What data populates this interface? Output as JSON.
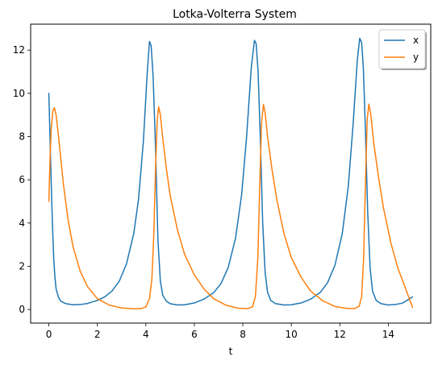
{
  "chart_data": {
    "type": "line",
    "title": "Lotka-Volterra System",
    "xlabel": "t",
    "ylabel": "",
    "xlim": [
      -0.75,
      15.75
    ],
    "ylim": [
      -0.63,
      13.2
    ],
    "xticks": [
      0,
      2,
      4,
      6,
      8,
      10,
      12,
      14
    ],
    "yticks": [
      0,
      2,
      4,
      6,
      8,
      10,
      12
    ],
    "grid": false,
    "legend": "top-right",
    "series": [
      {
        "name": "x",
        "color": "#1f77b4",
        "points": [
          [
            0.0,
            10.0
          ],
          [
            0.05,
            7.9
          ],
          [
            0.1,
            5.8
          ],
          [
            0.15,
            3.9
          ],
          [
            0.2,
            2.4
          ],
          [
            0.25,
            1.5
          ],
          [
            0.3,
            0.95
          ],
          [
            0.4,
            0.55
          ],
          [
            0.5,
            0.38
          ],
          [
            0.7,
            0.27
          ],
          [
            1.0,
            0.22
          ],
          [
            1.3,
            0.23
          ],
          [
            1.6,
            0.28
          ],
          [
            2.0,
            0.42
          ],
          [
            2.3,
            0.58
          ],
          [
            2.6,
            0.85
          ],
          [
            2.9,
            1.3
          ],
          [
            3.2,
            2.1
          ],
          [
            3.5,
            3.5
          ],
          [
            3.7,
            5.1
          ],
          [
            3.9,
            7.8
          ],
          [
            4.05,
            10.8
          ],
          [
            4.15,
            12.4
          ],
          [
            4.22,
            12.2
          ],
          [
            4.3,
            10.8
          ],
          [
            4.4,
            7.5
          ],
          [
            4.5,
            3.2
          ],
          [
            4.6,
            1.3
          ],
          [
            4.7,
            0.65
          ],
          [
            4.85,
            0.38
          ],
          [
            5.0,
            0.27
          ],
          [
            5.3,
            0.21
          ],
          [
            5.6,
            0.22
          ],
          [
            6.0,
            0.3
          ],
          [
            6.4,
            0.48
          ],
          [
            6.8,
            0.78
          ],
          [
            7.1,
            1.2
          ],
          [
            7.4,
            1.95
          ],
          [
            7.7,
            3.3
          ],
          [
            7.95,
            5.3
          ],
          [
            8.15,
            7.9
          ],
          [
            8.35,
            11.2
          ],
          [
            8.48,
            12.45
          ],
          [
            8.55,
            12.3
          ],
          [
            8.63,
            11.0
          ],
          [
            8.72,
            8.0
          ],
          [
            8.82,
            4.0
          ],
          [
            8.92,
            1.7
          ],
          [
            9.02,
            0.8
          ],
          [
            9.15,
            0.42
          ],
          [
            9.35,
            0.27
          ],
          [
            9.7,
            0.21
          ],
          [
            10.0,
            0.22
          ],
          [
            10.4,
            0.3
          ],
          [
            10.8,
            0.48
          ],
          [
            11.2,
            0.8
          ],
          [
            11.5,
            1.25
          ],
          [
            11.8,
            2.05
          ],
          [
            12.1,
            3.5
          ],
          [
            12.35,
            5.7
          ],
          [
            12.55,
            8.6
          ],
          [
            12.72,
            11.5
          ],
          [
            12.82,
            12.55
          ],
          [
            12.9,
            12.35
          ],
          [
            12.97,
            11.2
          ],
          [
            13.05,
            8.5
          ],
          [
            13.15,
            4.5
          ],
          [
            13.25,
            1.9
          ],
          [
            13.35,
            0.85
          ],
          [
            13.5,
            0.42
          ],
          [
            13.7,
            0.27
          ],
          [
            14.0,
            0.21
          ],
          [
            14.3,
            0.23
          ],
          [
            14.6,
            0.3
          ],
          [
            15.0,
            0.58
          ]
        ]
      },
      {
        "name": "y",
        "color": "#ff7f0e",
        "points": [
          [
            0.0,
            5.0
          ],
          [
            0.05,
            7.0
          ],
          [
            0.1,
            8.4
          ],
          [
            0.17,
            9.2
          ],
          [
            0.23,
            9.33
          ],
          [
            0.3,
            9.0
          ],
          [
            0.4,
            8.0
          ],
          [
            0.5,
            6.9
          ],
          [
            0.6,
            5.8
          ],
          [
            0.8,
            4.1
          ],
          [
            1.0,
            2.9
          ],
          [
            1.3,
            1.75
          ],
          [
            1.6,
            1.05
          ],
          [
            2.0,
            0.5
          ],
          [
            2.5,
            0.2
          ],
          [
            3.0,
            0.07
          ],
          [
            3.5,
            0.03
          ],
          [
            3.8,
            0.04
          ],
          [
            4.0,
            0.12
          ],
          [
            4.15,
            0.5
          ],
          [
            4.25,
            1.4
          ],
          [
            4.33,
            3.5
          ],
          [
            4.4,
            6.5
          ],
          [
            4.47,
            8.8
          ],
          [
            4.53,
            9.38
          ],
          [
            4.6,
            9.0
          ],
          [
            4.7,
            7.9
          ],
          [
            4.85,
            6.5
          ],
          [
            5.0,
            5.3
          ],
          [
            5.3,
            3.7
          ],
          [
            5.6,
            2.55
          ],
          [
            6.0,
            1.6
          ],
          [
            6.4,
            0.95
          ],
          [
            6.8,
            0.5
          ],
          [
            7.3,
            0.2
          ],
          [
            7.8,
            0.06
          ],
          [
            8.2,
            0.04
          ],
          [
            8.4,
            0.12
          ],
          [
            8.52,
            0.6
          ],
          [
            8.62,
            2.4
          ],
          [
            8.7,
            5.8
          ],
          [
            8.77,
            8.6
          ],
          [
            8.85,
            9.48
          ],
          [
            8.92,
            9.1
          ],
          [
            9.02,
            8.0
          ],
          [
            9.2,
            6.5
          ],
          [
            9.4,
            5.1
          ],
          [
            9.7,
            3.5
          ],
          [
            10.0,
            2.4
          ],
          [
            10.4,
            1.5
          ],
          [
            10.8,
            0.85
          ],
          [
            11.3,
            0.4
          ],
          [
            11.8,
            0.14
          ],
          [
            12.3,
            0.05
          ],
          [
            12.6,
            0.04
          ],
          [
            12.8,
            0.15
          ],
          [
            12.9,
            0.6
          ],
          [
            12.98,
            2.3
          ],
          [
            13.06,
            6.0
          ],
          [
            13.13,
            8.8
          ],
          [
            13.2,
            9.5
          ],
          [
            13.28,
            9.0
          ],
          [
            13.4,
            7.7
          ],
          [
            13.6,
            6.1
          ],
          [
            13.8,
            4.7
          ],
          [
            14.1,
            3.1
          ],
          [
            14.4,
            1.9
          ],
          [
            14.7,
            1.0
          ],
          [
            15.0,
            0.1
          ]
        ]
      }
    ]
  }
}
